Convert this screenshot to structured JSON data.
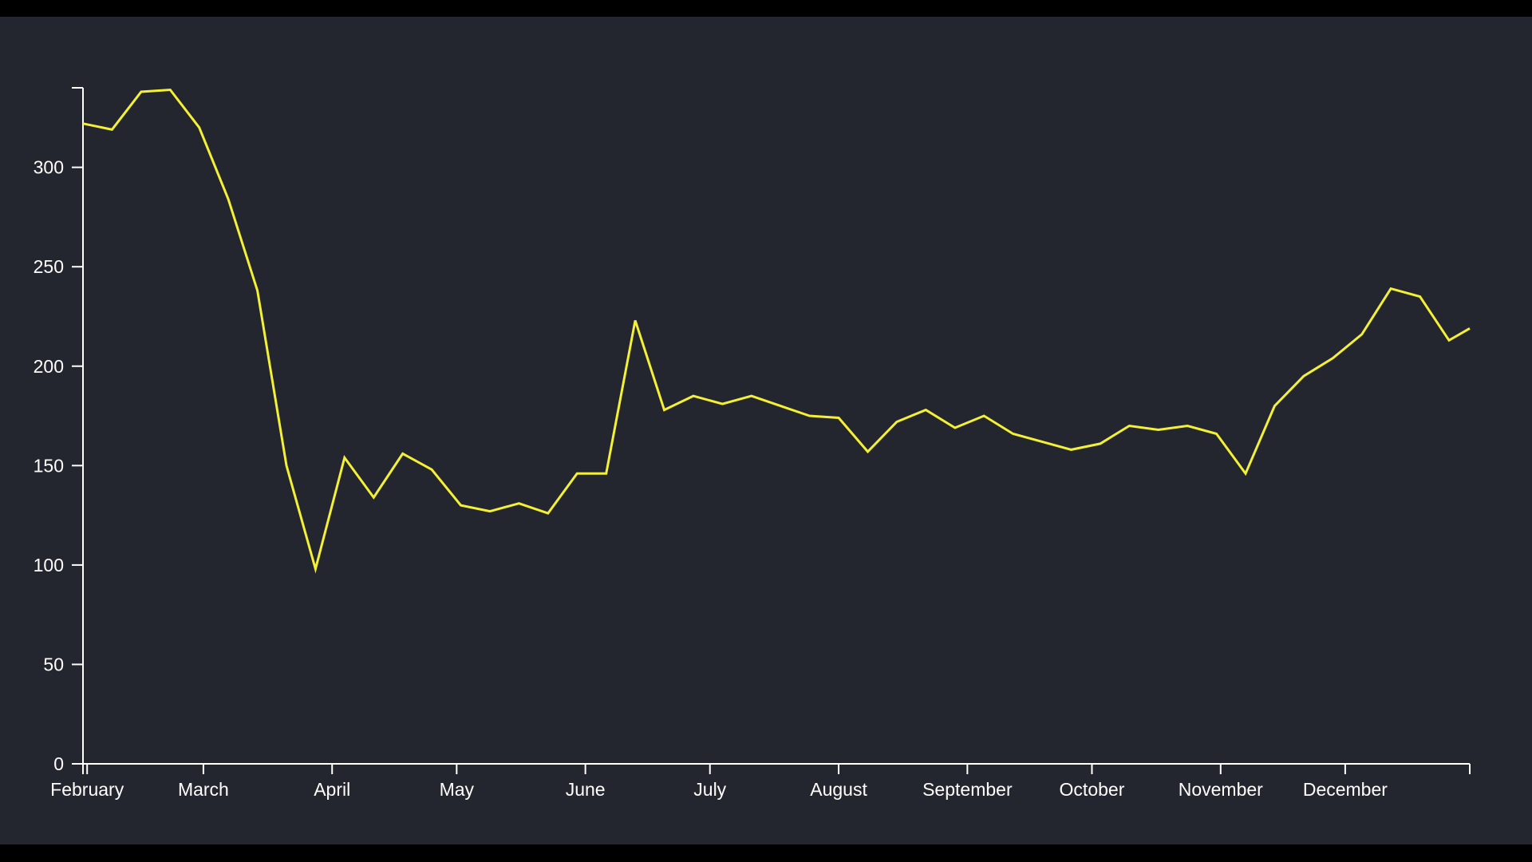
{
  "chart_data": {
    "type": "line",
    "title": "",
    "xlabel": "",
    "ylabel": "",
    "x_ticks": [
      "February",
      "March",
      "April",
      "May",
      "June",
      "July",
      "August",
      "September",
      "October",
      "November",
      "December"
    ],
    "y_ticks": [
      "0",
      "50",
      "100",
      "150",
      "200",
      "250",
      "300"
    ],
    "ylim": [
      0,
      340
    ],
    "xlim": [
      "2021-01-31",
      "2021-12-31"
    ],
    "grid": false,
    "legend": "none",
    "colors": {
      "background": "#23262e",
      "frame": "#000000",
      "axis": "#ffffff",
      "line": "#f4f035"
    },
    "series": [
      {
        "x": [
          "2021-01-31",
          "2021-02-07",
          "2021-02-14",
          "2021-02-21",
          "2021-02-28",
          "2021-03-07",
          "2021-03-14",
          "2021-03-21",
          "2021-03-28",
          "2021-04-04",
          "2021-04-11",
          "2021-04-18",
          "2021-04-25",
          "2021-05-02",
          "2021-05-09",
          "2021-05-16",
          "2021-05-23",
          "2021-05-30",
          "2021-06-06",
          "2021-06-13",
          "2021-06-20",
          "2021-06-27",
          "2021-07-04",
          "2021-07-11",
          "2021-07-18",
          "2021-07-25",
          "2021-08-01",
          "2021-08-08",
          "2021-08-15",
          "2021-08-22",
          "2021-08-29",
          "2021-09-05",
          "2021-09-12",
          "2021-09-19",
          "2021-09-26",
          "2021-10-03",
          "2021-10-10",
          "2021-10-17",
          "2021-10-24",
          "2021-10-31",
          "2021-11-07",
          "2021-11-14",
          "2021-11-21",
          "2021-11-28",
          "2021-12-05",
          "2021-12-12",
          "2021-12-19",
          "2021-12-26",
          "2021-12-31"
        ],
        "values": [
          322,
          319,
          338,
          339,
          320,
          284,
          238,
          150,
          98,
          154,
          134,
          156,
          148,
          130,
          127,
          131,
          126,
          146,
          146,
          223,
          178,
          185,
          181,
          185,
          180,
          175,
          174,
          157,
          172,
          178,
          169,
          175,
          166,
          162,
          158,
          161,
          170,
          168,
          170,
          166,
          146,
          180,
          195,
          204,
          216,
          239,
          235,
          213,
          219
        ]
      }
    ]
  }
}
